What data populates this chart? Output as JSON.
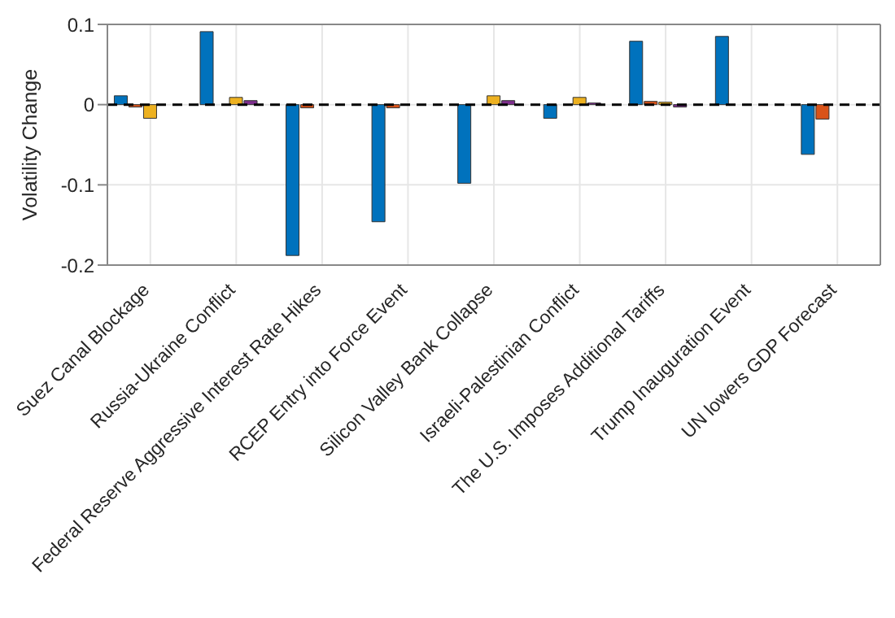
{
  "chart_data": {
    "type": "bar",
    "ylabel": "Volatility Change",
    "categories": [
      "Suez Canal Blockage",
      "Russia-Ukraine Conflict",
      "Federal Reserve Aggressive Interest Rate Hikes",
      "RCEP Entry into Force Event",
      "Silicon Valley Bank Collapse",
      "Israeli-Palestinian Conflict",
      "The U.S. Imposes Additional Tariffs",
      "Trump Inauguration Event",
      "UN lowers GDP Forecast"
    ],
    "series": [
      {
        "color": "#0072bd",
        "values": [
          0.011,
          0.091,
          -0.188,
          -0.146,
          -0.098,
          -0.017,
          0.079,
          0.085,
          -0.062
        ]
      },
      {
        "color": "#d95319",
        "values": [
          -0.003,
          0,
          -0.004,
          -0.004,
          null,
          0,
          0.004,
          0,
          -0.018
        ]
      },
      {
        "color": "#edb120",
        "values": [
          -0.017,
          0.009,
          0,
          0,
          0.011,
          0.009,
          0.003,
          0,
          null
        ]
      },
      {
        "color": "#7e2f8e",
        "values": [
          0,
          0.005,
          0,
          0,
          0.005,
          0.002,
          -0.003,
          0,
          0
        ]
      },
      {
        "color": "#77ac30",
        "values": [
          0,
          0,
          0,
          0,
          0,
          0,
          0,
          0,
          0
        ]
      }
    ],
    "ylim": [
      -0.2,
      0.1
    ],
    "yticks": [
      -0.2,
      -0.1,
      0,
      0.1
    ],
    "grid": true,
    "ref_lines": [
      {
        "axis": "y",
        "value": 0,
        "color": "#000000",
        "line_style": "dashed"
      }
    ]
  }
}
